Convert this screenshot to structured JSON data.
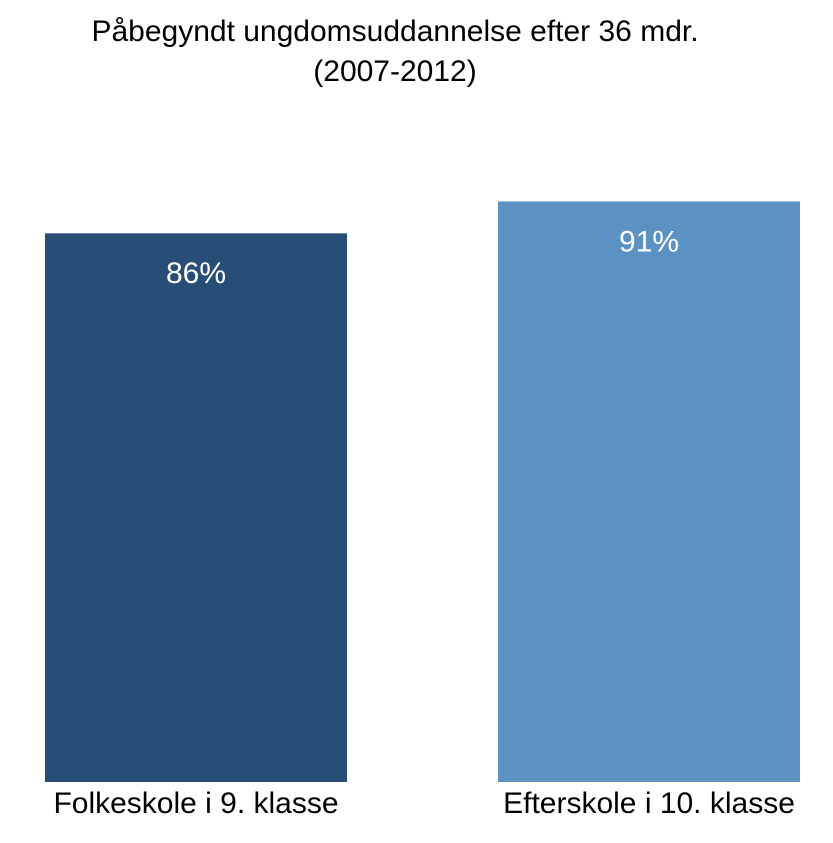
{
  "chart_data": {
    "type": "bar",
    "title": "Påbegyndt ungdomsuddannelse efter 36 mdr. (2007-2012)",
    "categories": [
      "Folkeskole i 9. klasse",
      "Efterskole i 10. klasse"
    ],
    "values": [
      86,
      91
    ],
    "value_labels": [
      "86%",
      "91%"
    ],
    "colors": [
      "#284e78",
      "#5b92c3"
    ],
    "ylim": [
      0,
      100
    ]
  }
}
